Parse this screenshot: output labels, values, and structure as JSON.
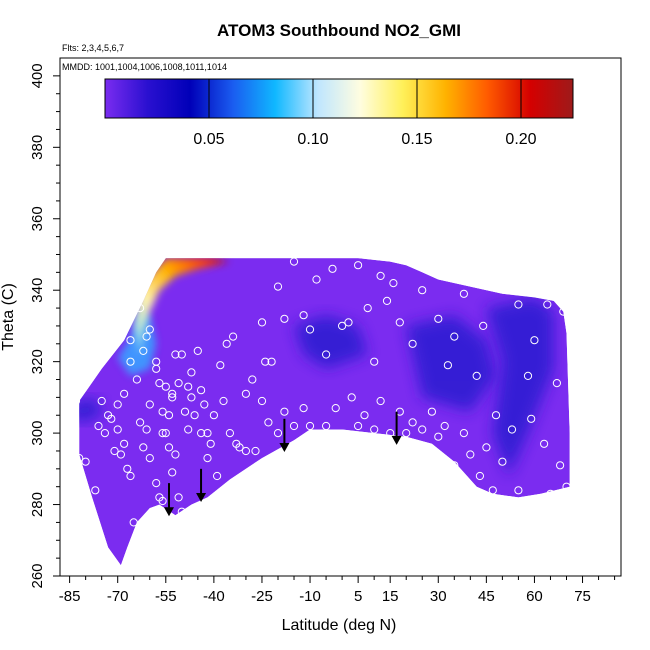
{
  "chart_data": {
    "type": "heatmap",
    "title": "ATOM3 Southbound NO2_GMI",
    "flights_label": "Flts: 2,3,4,5,6,7",
    "dates_label": "MMDD: 1001,1004,1006,1008,1011,1014",
    "xlabel": "Latitude (deg N)",
    "ylabel": "Theta (C)",
    "xlim": [
      -88,
      87
    ],
    "ylim": [
      260,
      405
    ],
    "x_ticks_labeled": [
      "-85",
      "-70",
      "-55",
      "-40",
      "-25",
      "-10",
      "5",
      "15",
      "30",
      "45",
      "60",
      "75"
    ],
    "y_ticks_labeled": [
      "260",
      "280",
      "300",
      "320",
      "340",
      "360",
      "380",
      "400"
    ],
    "colorbar": {
      "range": [
        0,
        0.225
      ],
      "tick_labels": [
        "0.05",
        "0.10",
        "0.15",
        "0.20"
      ],
      "tick_values": [
        0.05,
        0.1,
        0.15,
        0.2
      ],
      "colors": [
        "#7a2cf0",
        "#2a10d0",
        "#0000b8",
        "#1a5cf0",
        "#10b8ff",
        "#bfe6ff",
        "#fffde0",
        "#fff05a",
        "#ffb300",
        "#ff5a00",
        "#d40000",
        "#9e1a1a"
      ]
    },
    "colors": {
      "base_purple": "#7b2cf0",
      "dark_blue": "#2a1ad0",
      "points": "#ffffff"
    },
    "field_region": {
      "upper_boundary": [
        [
          -82,
          309
        ],
        [
          -75,
          318
        ],
        [
          -68,
          326
        ],
        [
          -62,
          337
        ],
        [
          -58,
          345
        ],
        [
          -55,
          349
        ],
        [
          -40,
          349
        ],
        [
          -25,
          349
        ],
        [
          -10,
          349
        ],
        [
          5,
          349
        ],
        [
          15,
          348
        ],
        [
          20,
          347
        ],
        [
          25,
          345
        ],
        [
          30,
          343
        ],
        [
          40,
          341
        ],
        [
          50,
          339
        ],
        [
          60,
          338
        ],
        [
          66,
          337
        ],
        [
          69,
          334
        ],
        [
          70,
          328
        ],
        [
          71,
          300
        ],
        [
          71,
          285
        ]
      ],
      "lower_boundary": [
        [
          -82,
          294
        ],
        [
          -78,
          282
        ],
        [
          -73,
          268
        ],
        [
          -69,
          263
        ],
        [
          -67,
          268
        ],
        [
          -64,
          275
        ],
        [
          -60,
          279
        ],
        [
          -57,
          280
        ],
        [
          -52,
          277
        ],
        [
          -47,
          280
        ],
        [
          -42,
          282
        ],
        [
          -35,
          287
        ],
        [
          -25,
          293
        ],
        [
          -15,
          298
        ],
        [
          -10,
          301
        ],
        [
          0,
          301
        ],
        [
          10,
          300
        ],
        [
          20,
          299
        ],
        [
          28,
          297
        ],
        [
          35,
          292
        ],
        [
          42,
          285
        ],
        [
          47,
          283
        ],
        [
          55,
          282
        ],
        [
          62,
          283
        ],
        [
          71,
          285
        ]
      ],
      "hotspot": [
        [
          -63,
          341
        ],
        [
          -59,
          345
        ],
        [
          -55,
          349
        ],
        [
          -50,
          349
        ],
        [
          -40,
          349
        ],
        [
          -35,
          348
        ],
        [
          -45,
          346
        ],
        [
          -52,
          344
        ],
        [
          -57,
          340
        ],
        [
          -60,
          334
        ],
        [
          -62,
          328
        ],
        [
          -63,
          322
        ],
        [
          -65,
          330
        ]
      ],
      "blue_patch": [
        [
          -70,
          321
        ],
        [
          -66,
          327
        ],
        [
          -63,
          334
        ],
        [
          -60,
          333
        ],
        [
          -58,
          325
        ],
        [
          -60,
          318
        ],
        [
          -66,
          316
        ]
      ],
      "dark_patches": [
        [
          [
            -85,
            308
          ],
          [
            -78,
            310
          ],
          [
            -74,
            306
          ],
          [
            -80,
            303
          ],
          [
            -85,
            304
          ]
        ],
        [
          [
            -15,
            330
          ],
          [
            -5,
            333
          ],
          [
            5,
            330
          ],
          [
            8,
            322
          ],
          [
            -5,
            318
          ],
          [
            -12,
            322
          ]
        ],
        [
          [
            20,
            330
          ],
          [
            35,
            333
          ],
          [
            45,
            326
          ],
          [
            48,
            316
          ],
          [
            40,
            306
          ],
          [
            25,
            310
          ]
        ],
        [
          [
            45,
            335
          ],
          [
            60,
            338
          ],
          [
            66,
            334
          ],
          [
            66,
            318
          ],
          [
            58,
            300
          ],
          [
            52,
            288
          ],
          [
            47,
            300
          ],
          [
            50,
            320
          ]
        ]
      ]
    },
    "observation_points": [
      [
        -82,
        293
      ],
      [
        -80,
        292
      ],
      [
        -77,
        284
      ],
      [
        -75,
        309
      ],
      [
        -73,
        305
      ],
      [
        -72,
        304
      ],
      [
        -70,
        301
      ],
      [
        -70,
        308
      ],
      [
        -69,
        294
      ],
      [
        -68,
        297
      ],
      [
        -67,
        290
      ],
      [
        -66,
        288
      ],
      [
        -65,
        275
      ],
      [
        -64,
        268
      ],
      [
        -63,
        303
      ],
      [
        -62,
        296
      ],
      [
        -61,
        301
      ],
      [
        -60,
        308
      ],
      [
        -60,
        293
      ],
      [
        -58,
        286
      ],
      [
        -57,
        282
      ],
      [
        -56,
        281
      ],
      [
        -55,
        313
      ],
      [
        -55,
        300
      ],
      [
        -54,
        305
      ],
      [
        -53,
        311
      ],
      [
        -52,
        322
      ],
      [
        -52,
        294
      ],
      [
        -51,
        282
      ],
      [
        -50,
        278
      ],
      [
        -49,
        306
      ],
      [
        -48,
        313
      ],
      [
        -47,
        310
      ],
      [
        -45,
        323
      ],
      [
        -44,
        312
      ],
      [
        -43,
        308
      ],
      [
        -42,
        300
      ],
      [
        -41,
        297
      ],
      [
        -39,
        288
      ],
      [
        -38,
        319
      ],
      [
        -36,
        325
      ],
      [
        -34,
        327
      ],
      [
        -30,
        311
      ],
      [
        -28,
        315
      ],
      [
        -25,
        331
      ],
      [
        -24,
        320
      ],
      [
        -22,
        320
      ],
      [
        -20,
        341
      ],
      [
        -18,
        332
      ],
      [
        -15,
        348
      ],
      [
        -12,
        333
      ],
      [
        -10,
        329
      ],
      [
        -8,
        343
      ],
      [
        -5,
        322
      ],
      [
        -3,
        346
      ],
      [
        0,
        330
      ],
      [
        2,
        331
      ],
      [
        5,
        347
      ],
      [
        8,
        335
      ],
      [
        10,
        320
      ],
      [
        12,
        344
      ],
      [
        14,
        337
      ],
      [
        16,
        342
      ],
      [
        18,
        331
      ],
      [
        22,
        325
      ],
      [
        25,
        340
      ],
      [
        28,
        306
      ],
      [
        30,
        332
      ],
      [
        33,
        319
      ],
      [
        35,
        327
      ],
      [
        38,
        339
      ],
      [
        42,
        316
      ],
      [
        44,
        330
      ],
      [
        46,
        341
      ],
      [
        48,
        305
      ],
      [
        50,
        292
      ],
      [
        52,
        340
      ],
      [
        55,
        336
      ],
      [
        58,
        316
      ],
      [
        60,
        326
      ],
      [
        64,
        336
      ],
      [
        67,
        314
      ],
      [
        69,
        334
      ],
      [
        -86,
        292
      ],
      [
        -84,
        293
      ],
      [
        -83,
        309
      ],
      [
        -76,
        302
      ],
      [
        -74,
        300
      ],
      [
        -71,
        295
      ],
      [
        -68,
        311
      ],
      [
        -66,
        320
      ],
      [
        -64,
        315
      ],
      [
        -62,
        323
      ],
      [
        -60,
        329
      ],
      [
        -58,
        318
      ],
      [
        -57,
        314
      ],
      [
        -56,
        300
      ],
      [
        -54,
        296
      ],
      [
        -53,
        289
      ],
      [
        -50,
        322
      ],
      [
        -47,
        317
      ],
      [
        -46,
        305
      ],
      [
        -44,
        300
      ],
      [
        -40,
        305
      ],
      [
        -33,
        297
      ],
      [
        -30,
        295
      ],
      [
        -27,
        295
      ],
      [
        -20,
        300
      ],
      [
        -15,
        302
      ],
      [
        -10,
        302
      ],
      [
        -5,
        302
      ],
      [
        5,
        302
      ],
      [
        10,
        301
      ],
      [
        15,
        300
      ],
      [
        20,
        300
      ],
      [
        25,
        301
      ],
      [
        30,
        299
      ],
      [
        35,
        291
      ],
      [
        40,
        294
      ],
      [
        43,
        288
      ],
      [
        47,
        284
      ],
      [
        55,
        284
      ],
      [
        65,
        283
      ],
      [
        70,
        285
      ],
      [
        -66,
        326
      ],
      [
        -63,
        335
      ],
      [
        -61,
        327
      ],
      [
        -58,
        320
      ],
      [
        -56,
        306
      ],
      [
        -53,
        310
      ],
      [
        -51,
        314
      ],
      [
        -48,
        301
      ],
      [
        -42,
        293
      ],
      [
        -37,
        309
      ],
      [
        -35,
        300
      ],
      [
        -32,
        296
      ],
      [
        -25,
        309
      ],
      [
        -23,
        303
      ],
      [
        -18,
        306
      ],
      [
        -12,
        307
      ],
      [
        -2,
        307
      ],
      [
        3,
        310
      ],
      [
        7,
        305
      ],
      [
        12,
        309
      ],
      [
        18,
        306
      ],
      [
        22,
        303
      ],
      [
        32,
        302
      ],
      [
        38,
        300
      ],
      [
        45,
        296
      ],
      [
        53,
        301
      ],
      [
        59,
        304
      ],
      [
        63,
        297
      ],
      [
        68,
        291
      ]
    ],
    "arrows": [
      {
        "lat": -54,
        "theta_top": 286,
        "theta_bottom": 277
      },
      {
        "lat": -44,
        "theta_top": 290,
        "theta_bottom": 281
      },
      {
        "lat": -18,
        "theta_top": 304,
        "theta_bottom": 295
      },
      {
        "lat": 17,
        "theta_top": 306,
        "theta_bottom": 297
      }
    ]
  }
}
